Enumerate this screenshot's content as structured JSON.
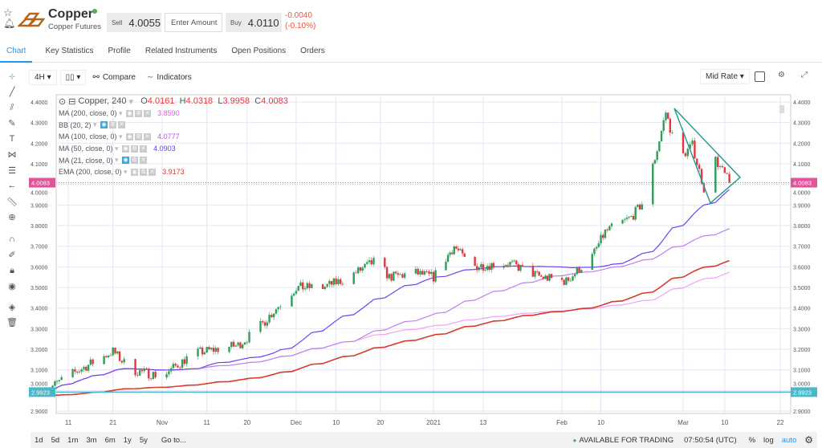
{
  "header": {
    "name": "Copper",
    "subtitle": "Copper Futures",
    "sell_label": "Sell",
    "sell_price": "4.0055",
    "amount_placeholder": "Enter Amount",
    "buy_label": "Buy",
    "buy_price": "4.0110",
    "change": "-0.0040",
    "change_pct": "(-0.10%)",
    "status_color": "#4caf50"
  },
  "tabs": [
    {
      "label": "Chart"
    },
    {
      "label": "Key Statistics"
    },
    {
      "label": "Profile"
    },
    {
      "label": "Related Instruments"
    },
    {
      "label": "Open Positions"
    },
    {
      "label": "Orders"
    }
  ],
  "toolbar": {
    "interval": "4H",
    "compare": "Compare",
    "indicators": "Indicators",
    "rate": "Mid Rate"
  },
  "legend": {
    "symbol": "Copper, 240",
    "o_label": "O",
    "o": "4.0161",
    "h_label": "H",
    "h": "4.0318",
    "l_label": "L",
    "l": "3.9958",
    "c_label": "C",
    "c": "4.0083",
    "studies": [
      {
        "name": "MA (200, close, 0)",
        "value": "3.8590",
        "color": "#e056f0",
        "visible": false
      },
      {
        "name": "BB (20, 2)",
        "value": "",
        "visible": true
      },
      {
        "name": "MA (100, close, 0)",
        "value": "4.0777",
        "color": "#b05ae8",
        "visible": false
      },
      {
        "name": "MA (50, close, 0)",
        "value": "4.0903",
        "color": "#6a3ff0",
        "visible": false
      },
      {
        "name": "MA (21, close, 0)",
        "value": "",
        "visible": true
      },
      {
        "name": "EMA (200, close, 0)",
        "value": "3.9173",
        "color": "#d93a2b",
        "visible": false
      }
    ]
  },
  "y_ticks": [
    "4.4000",
    "4.3000",
    "4.2000",
    "4.1000",
    "4.0000",
    "3.9000",
    "3.8000",
    "3.7000",
    "3.6000",
    "3.5000",
    "3.4000",
    "3.3000",
    "3.2000",
    "3.1000",
    "3.0000",
    "2.9000"
  ],
  "price_markers": {
    "current": "4.0083",
    "current_color": "#e0559a",
    "low": "2.9923",
    "low_color": "#4ab8c9"
  },
  "x_ticks": [
    {
      "label": "11",
      "date": "2020-10-11"
    },
    {
      "label": "21",
      "date": "2020-10-21"
    },
    {
      "label": "Nov",
      "date": "2020-11-01"
    },
    {
      "label": "11",
      "date": "2020-11-11"
    },
    {
      "label": "20",
      "date": "2020-11-20"
    },
    {
      "label": "Dec",
      "date": "2020-12-01"
    },
    {
      "label": "10",
      "date": "2020-12-10"
    },
    {
      "label": "20",
      "date": "2020-12-20"
    },
    {
      "label": "2021",
      "date": "2021-01-01"
    },
    {
      "label": "13",
      "date": "2021-01-13"
    },
    {
      "label": "Feb",
      "date": "2021-02-01"
    },
    {
      "label": "10",
      "date": "2021-02-10"
    },
    {
      "label": "Mar",
      "date": "2021-03-01"
    },
    {
      "label": "10",
      "date": "2021-03-10"
    },
    {
      "label": "22",
      "date": "2021-03-22"
    }
  ],
  "chart_data": {
    "type": "candlestick",
    "ylim": [
      2.9,
      4.4
    ],
    "close_path": [
      [
        "2020-10-06",
        3.0
      ],
      [
        "2020-10-11",
        3.07
      ],
      [
        "2020-10-21",
        3.19
      ],
      [
        "2020-10-25",
        3.1
      ],
      [
        "2020-11-01",
        3.07
      ],
      [
        "2020-11-08",
        3.18
      ],
      [
        "2020-11-18",
        3.22
      ],
      [
        "2020-11-22",
        3.29
      ],
      [
        "2020-11-27",
        3.41
      ],
      [
        "2020-12-01",
        3.5
      ],
      [
        "2020-12-07",
        3.5
      ],
      [
        "2020-12-12",
        3.54
      ],
      [
        "2020-12-19",
        3.63
      ],
      [
        "2020-12-22",
        3.55
      ],
      [
        "2020-12-28",
        3.57
      ],
      [
        "2021-01-01",
        3.55
      ],
      [
        "2021-01-06",
        3.7
      ],
      [
        "2021-01-10",
        3.6
      ],
      [
        "2021-01-19",
        3.62
      ],
      [
        "2021-01-27",
        3.55
      ],
      [
        "2021-02-02",
        3.53
      ],
      [
        "2021-02-08",
        3.65
      ],
      [
        "2021-02-11",
        3.77
      ],
      [
        "2021-02-17",
        3.84
      ],
      [
        "2021-02-20",
        3.92
      ],
      [
        "2021-02-23",
        4.17
      ],
      [
        "2021-02-25",
        4.35
      ],
      [
        "2021-02-28",
        4.12
      ],
      [
        "2021-03-03",
        4.19
      ],
      [
        "2021-03-06",
        3.94
      ],
      [
        "2021-03-08",
        4.12
      ],
      [
        "2021-03-11",
        4.008
      ]
    ]
  },
  "footer": {
    "ranges": [
      "1d",
      "5d",
      "1m",
      "3m",
      "6m",
      "1y",
      "5y"
    ],
    "goto": "Go to...",
    "status": "AVAILABLE FOR TRADING",
    "time": "07:50:54 (UTC)",
    "pct": "%",
    "log": "log",
    "auto": "auto"
  }
}
